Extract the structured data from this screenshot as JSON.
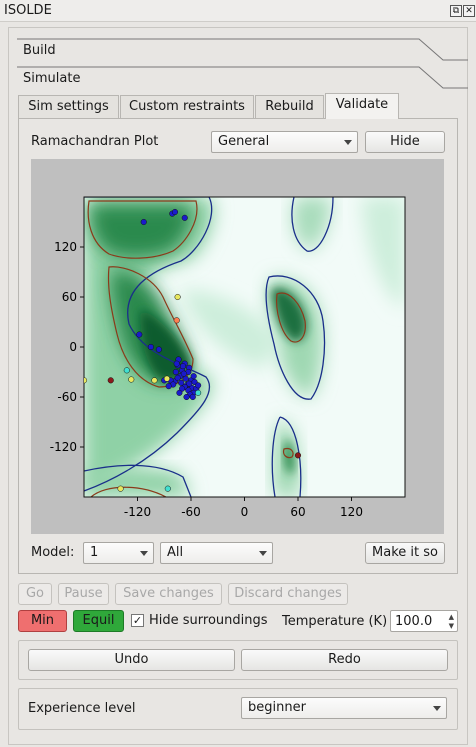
{
  "window": {
    "title": "ISOLDE"
  },
  "sections": {
    "build": "Build",
    "simulate": "Simulate"
  },
  "tabs": [
    "Sim settings",
    "Custom restraints",
    "Rebuild",
    "Validate"
  ],
  "rama": {
    "label": "Ramachandran Plot",
    "mode": "General",
    "hide_label": "Hide"
  },
  "chart_data": {
    "type": "scatter",
    "title": "",
    "xlabel": "",
    "ylabel": "",
    "xlim": [
      -180,
      180
    ],
    "ylim": [
      -180,
      180
    ],
    "xticks": [
      "-120",
      "-60",
      "0",
      "60",
      "120"
    ],
    "yticks": [
      "120",
      "60",
      "0",
      "-60",
      "-120"
    ],
    "colors": {
      "favored": "#1a1acc",
      "allowed": "#e8e860",
      "outlier": "#8b1a1a",
      "marginal": "#ff7f50",
      "teal": "#40e0d0"
    },
    "series": [
      {
        "values": [
          [
            -113,
            150
          ],
          [
            -81,
            160
          ],
          [
            -78,
            162
          ],
          [
            -67,
            155
          ],
          [
            -118,
            15
          ],
          [
            -105,
            0
          ],
          [
            -96,
            -3
          ],
          [
            -74,
            -15
          ],
          [
            -67,
            -20
          ],
          [
            -62,
            -25
          ],
          [
            -70,
            -28
          ],
          [
            -77,
            -30
          ],
          [
            -72,
            -35
          ],
          [
            -66,
            -38
          ],
          [
            -60,
            -40
          ],
          [
            -56,
            -42
          ],
          [
            -64,
            -45
          ],
          [
            -71,
            -43
          ],
          [
            -78,
            -41
          ],
          [
            -83,
            -40
          ],
          [
            -59,
            -49
          ],
          [
            -54,
            -50
          ],
          [
            -67,
            -48
          ],
          [
            -63,
            -52
          ],
          [
            -70,
            -50
          ],
          [
            -57,
            -55
          ],
          [
            -61,
            -57
          ],
          [
            -75,
            -37
          ],
          [
            -80,
            -45
          ],
          [
            -85,
            -47
          ],
          [
            -52,
            -46
          ],
          [
            -69,
            -23
          ],
          [
            -63,
            -30
          ],
          [
            -57,
            -35
          ],
          [
            -75,
            -22
          ],
          [
            -90,
            -40
          ],
          [
            -65,
            -60
          ],
          [
            -58,
            -60
          ],
          [
            -73,
            -55
          ],
          [
            -76,
            -20
          ],
          [
            -68,
            -32
          ],
          [
            -62,
            -44
          ]
        ]
      },
      {
        "values": [
          [
            -75,
            60
          ],
          [
            -180,
            -40
          ],
          [
            -132,
            -28
          ],
          [
            -127,
            -39
          ],
          [
            -139,
            -170
          ],
          [
            -86,
            -170
          ],
          [
            -87,
            -38
          ],
          [
            -101,
            -40
          ],
          [
            -52,
            -55
          ],
          [
            -76,
            32
          ]
        ]
      },
      {
        "values": [
          [
            -150,
            -40
          ],
          [
            60,
            -130
          ]
        ]
      }
    ]
  },
  "model": {
    "label": "Model:",
    "model_value": "1",
    "chain_value": "All",
    "make_label": "Make it so"
  },
  "sim_controls": {
    "go": "Go",
    "pause": "Pause",
    "save": "Save changes",
    "discard": "Discard changes",
    "min": "Min",
    "equil": "Equil",
    "hide_surroundings": "Hide surroundings",
    "hide_checked": "✓",
    "temperature_label": "Temperature (K)",
    "temperature_value": "100.0"
  },
  "undo_redo": {
    "undo": "Undo",
    "redo": "Redo"
  },
  "experience": {
    "label": "Experience level",
    "value": "beginner"
  }
}
